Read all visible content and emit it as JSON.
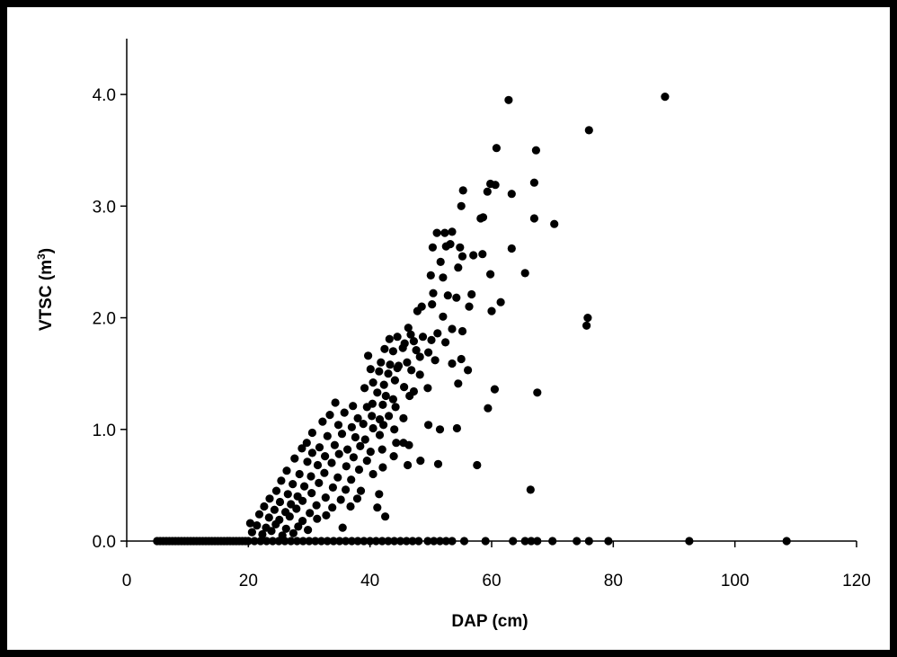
{
  "chart_data": {
    "type": "scatter",
    "title": "",
    "xlabel": "DAP (cm)",
    "ylabel_main": "VTSC (m",
    "ylabel_sup": "3",
    "ylabel_close": ")",
    "xlim": [
      0,
      120
    ],
    "ylim": [
      0,
      4.5
    ],
    "x_ticks": [
      0,
      20,
      40,
      60,
      80,
      100,
      120
    ],
    "x_tick_labels": [
      "0",
      "20",
      "40",
      "60",
      "80",
      "100",
      "120"
    ],
    "y_ticks": [
      0,
      1,
      2,
      3,
      4
    ],
    "y_tick_labels": [
      "0.0",
      "1.0",
      "2.0",
      "3.0",
      "4.0"
    ],
    "grid": false,
    "legend": "none",
    "marker_color": "#000000",
    "series": [
      {
        "points": [
          [
            5,
            0
          ],
          [
            5.5,
            0
          ],
          [
            6,
            0
          ],
          [
            6.5,
            0
          ],
          [
            7,
            0
          ],
          [
            7.5,
            0
          ],
          [
            8,
            0
          ],
          [
            8.5,
            0
          ],
          [
            9,
            0
          ],
          [
            9.5,
            0
          ],
          [
            10,
            0
          ],
          [
            10.5,
            0
          ],
          [
            11,
            0
          ],
          [
            11.5,
            0
          ],
          [
            12,
            0
          ],
          [
            12.5,
            0
          ],
          [
            13,
            0
          ],
          [
            13.5,
            0
          ],
          [
            14,
            0
          ],
          [
            14.5,
            0
          ],
          [
            15,
            0
          ],
          [
            15.5,
            0
          ],
          [
            16,
            0
          ],
          [
            16.5,
            0
          ],
          [
            17,
            0
          ],
          [
            17.5,
            0
          ],
          [
            18,
            0
          ],
          [
            18.5,
            0
          ],
          [
            19,
            0
          ],
          [
            19.5,
            0
          ],
          [
            20,
            0
          ],
          [
            21,
            0
          ],
          [
            22,
            0
          ],
          [
            23,
            0
          ],
          [
            24,
            0
          ],
          [
            25,
            0
          ],
          [
            26,
            0
          ],
          [
            27,
            0
          ],
          [
            28,
            0
          ],
          [
            29,
            0
          ],
          [
            30,
            0
          ],
          [
            31,
            0
          ],
          [
            32,
            0
          ],
          [
            33,
            0
          ],
          [
            34,
            0
          ],
          [
            35,
            0
          ],
          [
            36,
            0
          ],
          [
            37,
            0
          ],
          [
            38,
            0
          ],
          [
            39,
            0
          ],
          [
            40,
            0
          ],
          [
            41,
            0
          ],
          [
            42,
            0
          ],
          [
            43,
            0
          ],
          [
            44,
            0
          ],
          [
            45,
            0
          ],
          [
            46,
            0
          ],
          [
            47,
            0
          ],
          [
            48,
            0
          ],
          [
            49.5,
            0
          ],
          [
            50.5,
            0
          ],
          [
            51.5,
            0
          ],
          [
            52.5,
            0
          ],
          [
            53.5,
            0
          ],
          [
            55.5,
            0
          ],
          [
            59,
            0
          ],
          [
            63.5,
            0
          ],
          [
            65.5,
            0
          ],
          [
            66.5,
            0
          ],
          [
            67.5,
            0
          ],
          [
            70,
            0
          ],
          [
            74,
            0
          ],
          [
            76,
            0
          ],
          [
            79.2,
            0
          ],
          [
            92.5,
            0
          ],
          [
            108.5,
            0
          ],
          [
            62.8,
            3.95
          ],
          [
            88.5,
            3.98
          ],
          [
            76,
            3.68
          ],
          [
            60.8,
            3.52
          ],
          [
            67.3,
            3.5
          ],
          [
            59.8,
            3.2
          ],
          [
            60.6,
            3.19
          ],
          [
            67,
            3.21
          ],
          [
            63.3,
            3.11
          ],
          [
            59.3,
            3.13
          ],
          [
            55.3,
            3.14
          ],
          [
            55,
            3
          ],
          [
            58.2,
            2.89
          ],
          [
            58.6,
            2.9
          ],
          [
            67,
            2.89
          ],
          [
            70.3,
            2.84
          ],
          [
            51,
            2.76
          ],
          [
            52.3,
            2.76
          ],
          [
            53.5,
            2.77
          ],
          [
            50.3,
            2.63
          ],
          [
            52.5,
            2.64
          ],
          [
            53.2,
            2.66
          ],
          [
            54.8,
            2.63
          ],
          [
            63.3,
            2.62
          ],
          [
            55.2,
            2.55
          ],
          [
            57,
            2.56
          ],
          [
            58.5,
            2.57
          ],
          [
            51.6,
            2.5
          ],
          [
            54.5,
            2.45
          ],
          [
            50,
            2.38
          ],
          [
            52,
            2.36
          ],
          [
            59.8,
            2.39
          ],
          [
            65.5,
            2.4
          ],
          [
            50.4,
            2.22
          ],
          [
            52.8,
            2.2
          ],
          [
            54.2,
            2.18
          ],
          [
            56.7,
            2.21
          ],
          [
            61.5,
            2.14
          ],
          [
            47.8,
            2.06
          ],
          [
            48.5,
            2.1
          ],
          [
            50.2,
            2.12
          ],
          [
            52,
            2.01
          ],
          [
            56.3,
            2.1
          ],
          [
            60,
            2.06
          ],
          [
            75.8,
            2
          ],
          [
            75.6,
            1.93
          ],
          [
            46.3,
            1.91
          ],
          [
            48.7,
            1.83
          ],
          [
            51.1,
            1.86
          ],
          [
            53.5,
            1.9
          ],
          [
            55.2,
            1.88
          ],
          [
            43.2,
            1.81
          ],
          [
            44.5,
            1.83
          ],
          [
            45.7,
            1.77
          ],
          [
            46.7,
            1.85
          ],
          [
            47.2,
            1.79
          ],
          [
            50.1,
            1.8
          ],
          [
            52.4,
            1.78
          ],
          [
            42.4,
            1.72
          ],
          [
            43.8,
            1.7
          ],
          [
            45.4,
            1.73
          ],
          [
            47.6,
            1.71
          ],
          [
            49.6,
            1.69
          ],
          [
            39.7,
            1.66
          ],
          [
            41.8,
            1.6
          ],
          [
            43.3,
            1.58
          ],
          [
            44.7,
            1.57
          ],
          [
            46.1,
            1.6
          ],
          [
            48.2,
            1.65
          ],
          [
            50.7,
            1.62
          ],
          [
            53.5,
            1.59
          ],
          [
            55,
            1.63
          ],
          [
            40.1,
            1.54
          ],
          [
            41.5,
            1.52
          ],
          [
            43,
            1.5
          ],
          [
            44.5,
            1.55
          ],
          [
            46.8,
            1.53
          ],
          [
            48.2,
            1.49
          ],
          [
            56.1,
            1.53
          ],
          [
            40.5,
            1.42
          ],
          [
            42.3,
            1.4
          ],
          [
            44.1,
            1.44
          ],
          [
            45.6,
            1.38
          ],
          [
            47.2,
            1.34
          ],
          [
            49.5,
            1.37
          ],
          [
            54.5,
            1.41
          ],
          [
            39.1,
            1.37
          ],
          [
            41.2,
            1.33
          ],
          [
            42.6,
            1.3
          ],
          [
            43.8,
            1.27
          ],
          [
            46.5,
            1.3
          ],
          [
            60.5,
            1.36
          ],
          [
            67.5,
            1.33
          ],
          [
            34.3,
            1.24
          ],
          [
            37.2,
            1.21
          ],
          [
            39.5,
            1.2
          ],
          [
            40.4,
            1.23
          ],
          [
            42.1,
            1.22
          ],
          [
            44.2,
            1.2
          ],
          [
            59.4,
            1.19
          ],
          [
            33.4,
            1.13
          ],
          [
            35.8,
            1.15
          ],
          [
            38,
            1.1
          ],
          [
            40.3,
            1.12
          ],
          [
            41.6,
            1.09
          ],
          [
            43.1,
            1.12
          ],
          [
            45.5,
            1.1
          ],
          [
            32.2,
            1.07
          ],
          [
            34.8,
            1.04
          ],
          [
            37,
            1.02
          ],
          [
            38.9,
            1.05
          ],
          [
            40.5,
            1.01
          ],
          [
            42.2,
            1.04
          ],
          [
            44,
            1
          ],
          [
            49.6,
            1.04
          ],
          [
            51.5,
            1
          ],
          [
            54.3,
            1.01
          ],
          [
            30.5,
            0.97
          ],
          [
            33,
            0.94
          ],
          [
            35.4,
            0.96
          ],
          [
            37.6,
            0.93
          ],
          [
            39.2,
            0.91
          ],
          [
            41.6,
            0.95
          ],
          [
            44.3,
            0.88
          ],
          [
            29.6,
            0.88
          ],
          [
            31.7,
            0.84
          ],
          [
            34.2,
            0.86
          ],
          [
            36.3,
            0.82
          ],
          [
            38.4,
            0.85
          ],
          [
            40.1,
            0.8
          ],
          [
            42,
            0.82
          ],
          [
            45.5,
            0.88
          ],
          [
            46.4,
            0.86
          ],
          [
            28.8,
            0.83
          ],
          [
            30.5,
            0.79
          ],
          [
            32.6,
            0.76
          ],
          [
            34.9,
            0.78
          ],
          [
            37.3,
            0.75
          ],
          [
            39.5,
            0.72
          ],
          [
            43.9,
            0.76
          ],
          [
            27.6,
            0.74
          ],
          [
            29.7,
            0.71
          ],
          [
            31.4,
            0.68
          ],
          [
            33.7,
            0.7
          ],
          [
            36.1,
            0.67
          ],
          [
            38.2,
            0.64
          ],
          [
            42.1,
            0.66
          ],
          [
            46.2,
            0.68
          ],
          [
            51.2,
            0.69
          ],
          [
            57.6,
            0.68
          ],
          [
            26.3,
            0.63
          ],
          [
            28.4,
            0.6
          ],
          [
            30.3,
            0.58
          ],
          [
            32.5,
            0.61
          ],
          [
            34.7,
            0.57
          ],
          [
            36.9,
            0.55
          ],
          [
            40.5,
            0.6
          ],
          [
            48.3,
            0.72
          ],
          [
            25.4,
            0.54
          ],
          [
            27.3,
            0.51
          ],
          [
            29.2,
            0.49
          ],
          [
            31.6,
            0.52
          ],
          [
            33.9,
            0.48
          ],
          [
            36,
            0.46
          ],
          [
            38.5,
            0.45
          ],
          [
            41.5,
            0.42
          ],
          [
            66.4,
            0.46
          ],
          [
            24.6,
            0.45
          ],
          [
            26.5,
            0.42
          ],
          [
            28.1,
            0.4
          ],
          [
            30.4,
            0.43
          ],
          [
            32.7,
            0.39
          ],
          [
            35.2,
            0.37
          ],
          [
            37.9,
            0.38
          ],
          [
            23.5,
            0.38
          ],
          [
            25.2,
            0.35
          ],
          [
            27,
            0.33
          ],
          [
            28.9,
            0.36
          ],
          [
            31.2,
            0.32
          ],
          [
            33.8,
            0.3
          ],
          [
            36.8,
            0.31
          ],
          [
            22.6,
            0.31
          ],
          [
            24.3,
            0.28
          ],
          [
            26.1,
            0.26
          ],
          [
            27.9,
            0.29
          ],
          [
            30.1,
            0.25
          ],
          [
            32.8,
            0.23
          ],
          [
            41.2,
            0.3
          ],
          [
            21.8,
            0.24
          ],
          [
            23.4,
            0.21
          ],
          [
            25.1,
            0.19
          ],
          [
            26.8,
            0.22
          ],
          [
            28.9,
            0.18
          ],
          [
            31.3,
            0.2
          ],
          [
            42.5,
            0.22
          ],
          [
            20.3,
            0.16
          ],
          [
            21.4,
            0.14
          ],
          [
            22.9,
            0.12
          ],
          [
            24.5,
            0.15
          ],
          [
            26.2,
            0.11
          ],
          [
            28.2,
            0.13
          ],
          [
            29.8,
            0.1
          ],
          [
            35.5,
            0.12
          ],
          [
            20.6,
            0.08
          ],
          [
            22.3,
            0.06
          ],
          [
            23.8,
            0.09
          ],
          [
            25.6,
            0.05
          ],
          [
            27.4,
            0.07
          ]
        ]
      }
    ]
  }
}
